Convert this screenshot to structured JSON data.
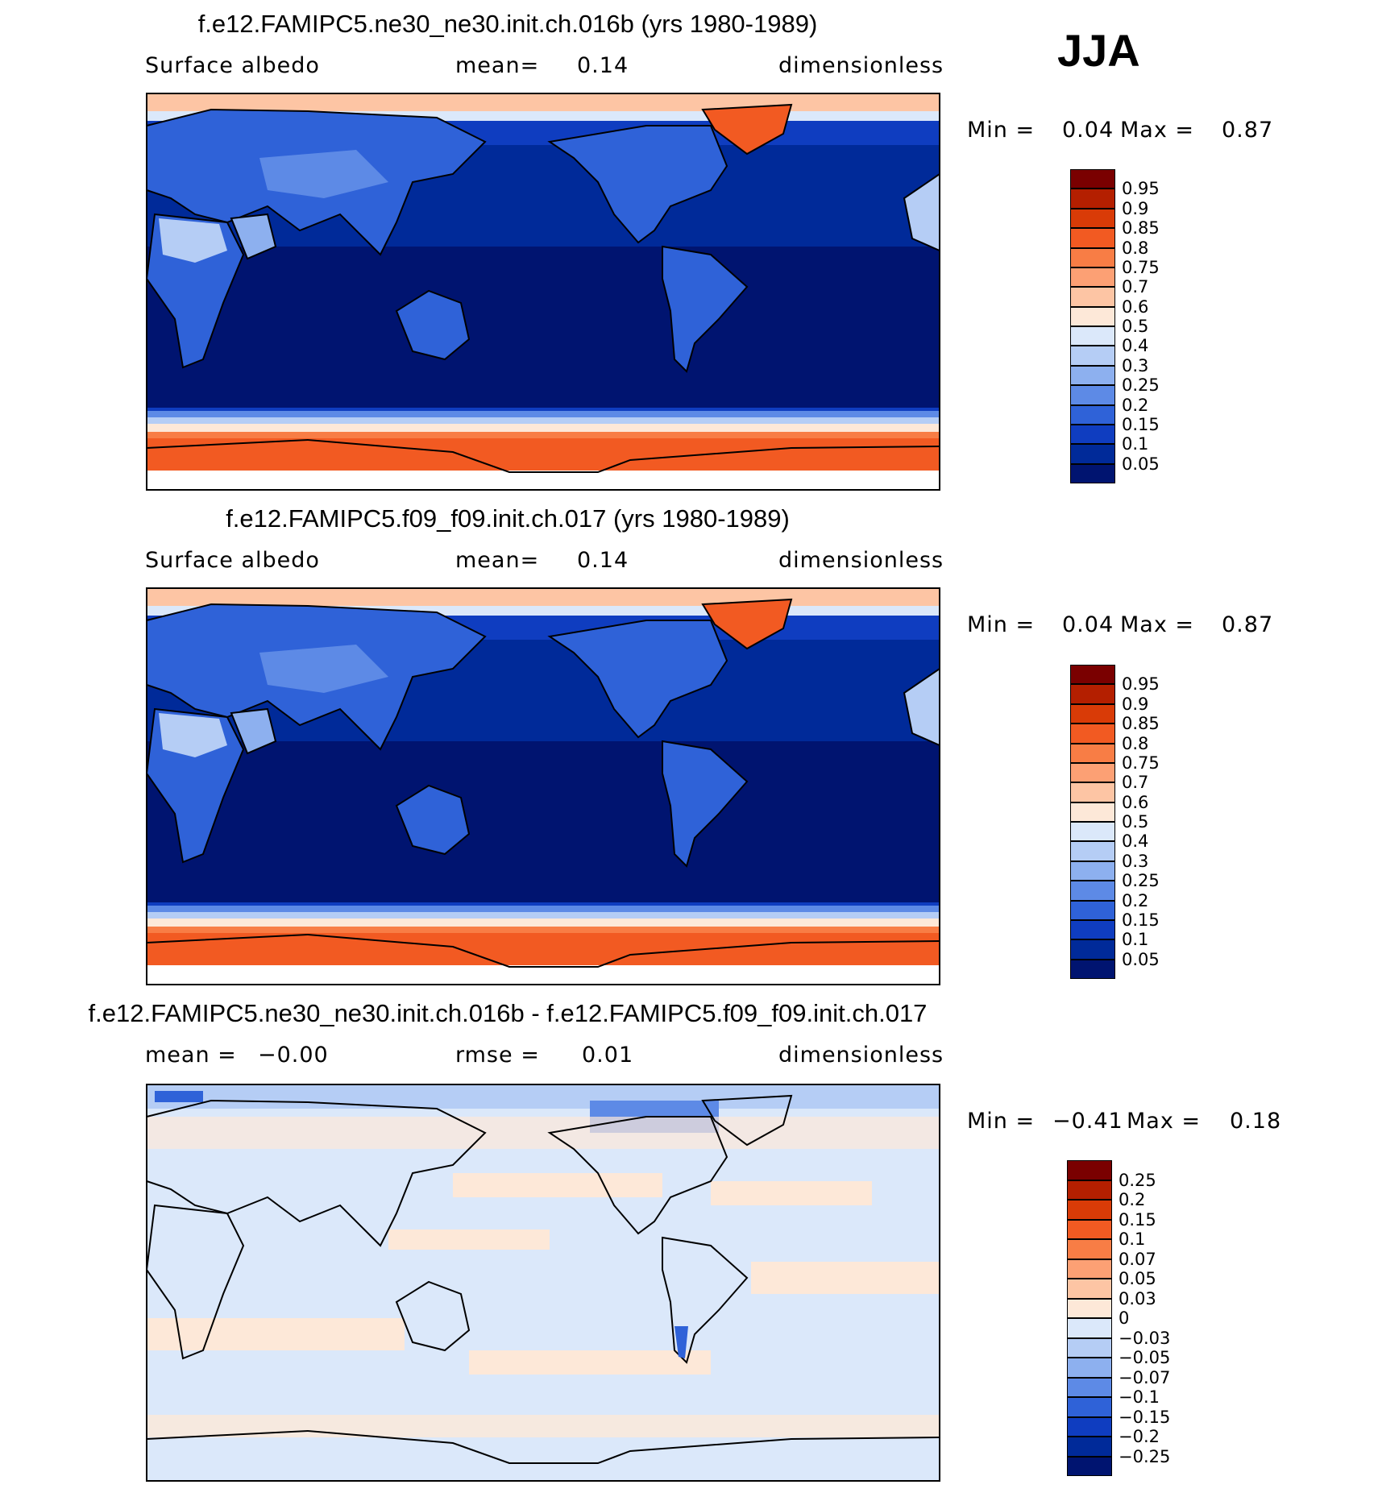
{
  "season": "JJA",
  "panels": [
    {
      "title": "f.e12.FAMIPC5.ne30_ne30.init.ch.016b (yrs 1980-1989)",
      "left_label": "Surface albedo",
      "stat_label": "mean=",
      "stat_value": "0.14",
      "units": "dimensionless",
      "min_label": "Min =",
      "min_value": "0.04",
      "max_label": "Max =",
      "max_value": "0.87"
    },
    {
      "title": "f.e12.FAMIPC5.f09_f09.init.ch.017 (yrs 1980-1989)",
      "left_label": "Surface albedo",
      "stat_label": "mean=",
      "stat_value": "0.14",
      "units": "dimensionless",
      "min_label": "Min =",
      "min_value": "0.04",
      "max_label": "Max =",
      "max_value": "0.87"
    },
    {
      "title": "f.e12.FAMIPC5.ne30_ne30.init.ch.016b - f.e12.FAMIPC5.f09_f09.init.ch.017",
      "left_label": "mean =",
      "left_value": "−0.00",
      "stat_label": "rmse =",
      "stat_value": "0.01",
      "units": "dimensionless",
      "min_label": "Min =",
      "min_value": "−0.41",
      "max_label": "Max =",
      "max_value": "0.18"
    }
  ],
  "chart_data": [
    {
      "type": "heatmap",
      "title": "f.e12.FAMIPC5.ne30_ne30.init.ch.016b (yrs 1980-1989)",
      "variable": "Surface albedo",
      "units": "dimensionless",
      "mean": 0.14,
      "min": 0.04,
      "max": 0.87,
      "projection": "cylindrical equidistant, Pacific-centered",
      "colorbar_levels": [
        "0.95",
        "0.9",
        "0.85",
        "0.8",
        "0.75",
        "0.7",
        "0.6",
        "0.5",
        "0.4",
        "0.3",
        "0.25",
        "0.2",
        "0.15",
        "0.1",
        "0.05"
      ],
      "colorbar_colors": [
        "#7a0000",
        "#b41f00",
        "#d93b07",
        "#f25a22",
        "#f87d45",
        "#fca074",
        "#fdc5a4",
        "#fde8d8",
        "#dbe8fa",
        "#b5cdf5",
        "#8db0ef",
        "#5d8ae6",
        "#2f62d8",
        "#0f3dc0",
        "#002a99",
        "#001470"
      ]
    },
    {
      "type": "heatmap",
      "title": "f.e12.FAMIPC5.f09_f09.init.ch.017 (yrs 1980-1989)",
      "variable": "Surface albedo",
      "units": "dimensionless",
      "mean": 0.14,
      "min": 0.04,
      "max": 0.87,
      "projection": "cylindrical equidistant, Pacific-centered",
      "colorbar_levels": [
        "0.95",
        "0.9",
        "0.85",
        "0.8",
        "0.75",
        "0.7",
        "0.6",
        "0.5",
        "0.4",
        "0.3",
        "0.25",
        "0.2",
        "0.15",
        "0.1",
        "0.05"
      ],
      "colorbar_colors": [
        "#7a0000",
        "#b41f00",
        "#d93b07",
        "#f25a22",
        "#f87d45",
        "#fca074",
        "#fdc5a4",
        "#fde8d8",
        "#dbe8fa",
        "#b5cdf5",
        "#8db0ef",
        "#5d8ae6",
        "#2f62d8",
        "#0f3dc0",
        "#002a99",
        "#001470"
      ]
    },
    {
      "type": "heatmap",
      "title": "f.e12.FAMIPC5.ne30_ne30.init.ch.016b - f.e12.FAMIPC5.f09_f09.init.ch.017",
      "units": "dimensionless",
      "mean": -0.0,
      "rmse": 0.01,
      "min": -0.41,
      "max": 0.18,
      "projection": "cylindrical equidistant, Pacific-centered",
      "colorbar_levels": [
        "0.25",
        "0.2",
        "0.15",
        "0.1",
        "0.07",
        "0.05",
        "0.03",
        "0",
        "−0.03",
        "−0.05",
        "−0.07",
        "−0.1",
        "−0.15",
        "−0.2",
        "−0.25"
      ],
      "colorbar_colors": [
        "#7a0000",
        "#b41f00",
        "#d93b07",
        "#f25a22",
        "#f87d45",
        "#fca074",
        "#fdc5a4",
        "#fde8d8",
        "#dbe8fa",
        "#b5cdf5",
        "#8db0ef",
        "#5d8ae6",
        "#2f62d8",
        "#0f3dc0",
        "#002a99",
        "#001470"
      ]
    }
  ],
  "colors": {
    "ocean_albedo": "#001470",
    "ocean_albedo_2": "#002a99",
    "land_albedo": "#2f62d8",
    "desert_albedo": "#b5cdf5",
    "ice_albedo": "#f25a22",
    "diff_background": "#dbe8fa",
    "diff_positive": "#fde8d8",
    "diff_negative": "#5d8ae6"
  }
}
